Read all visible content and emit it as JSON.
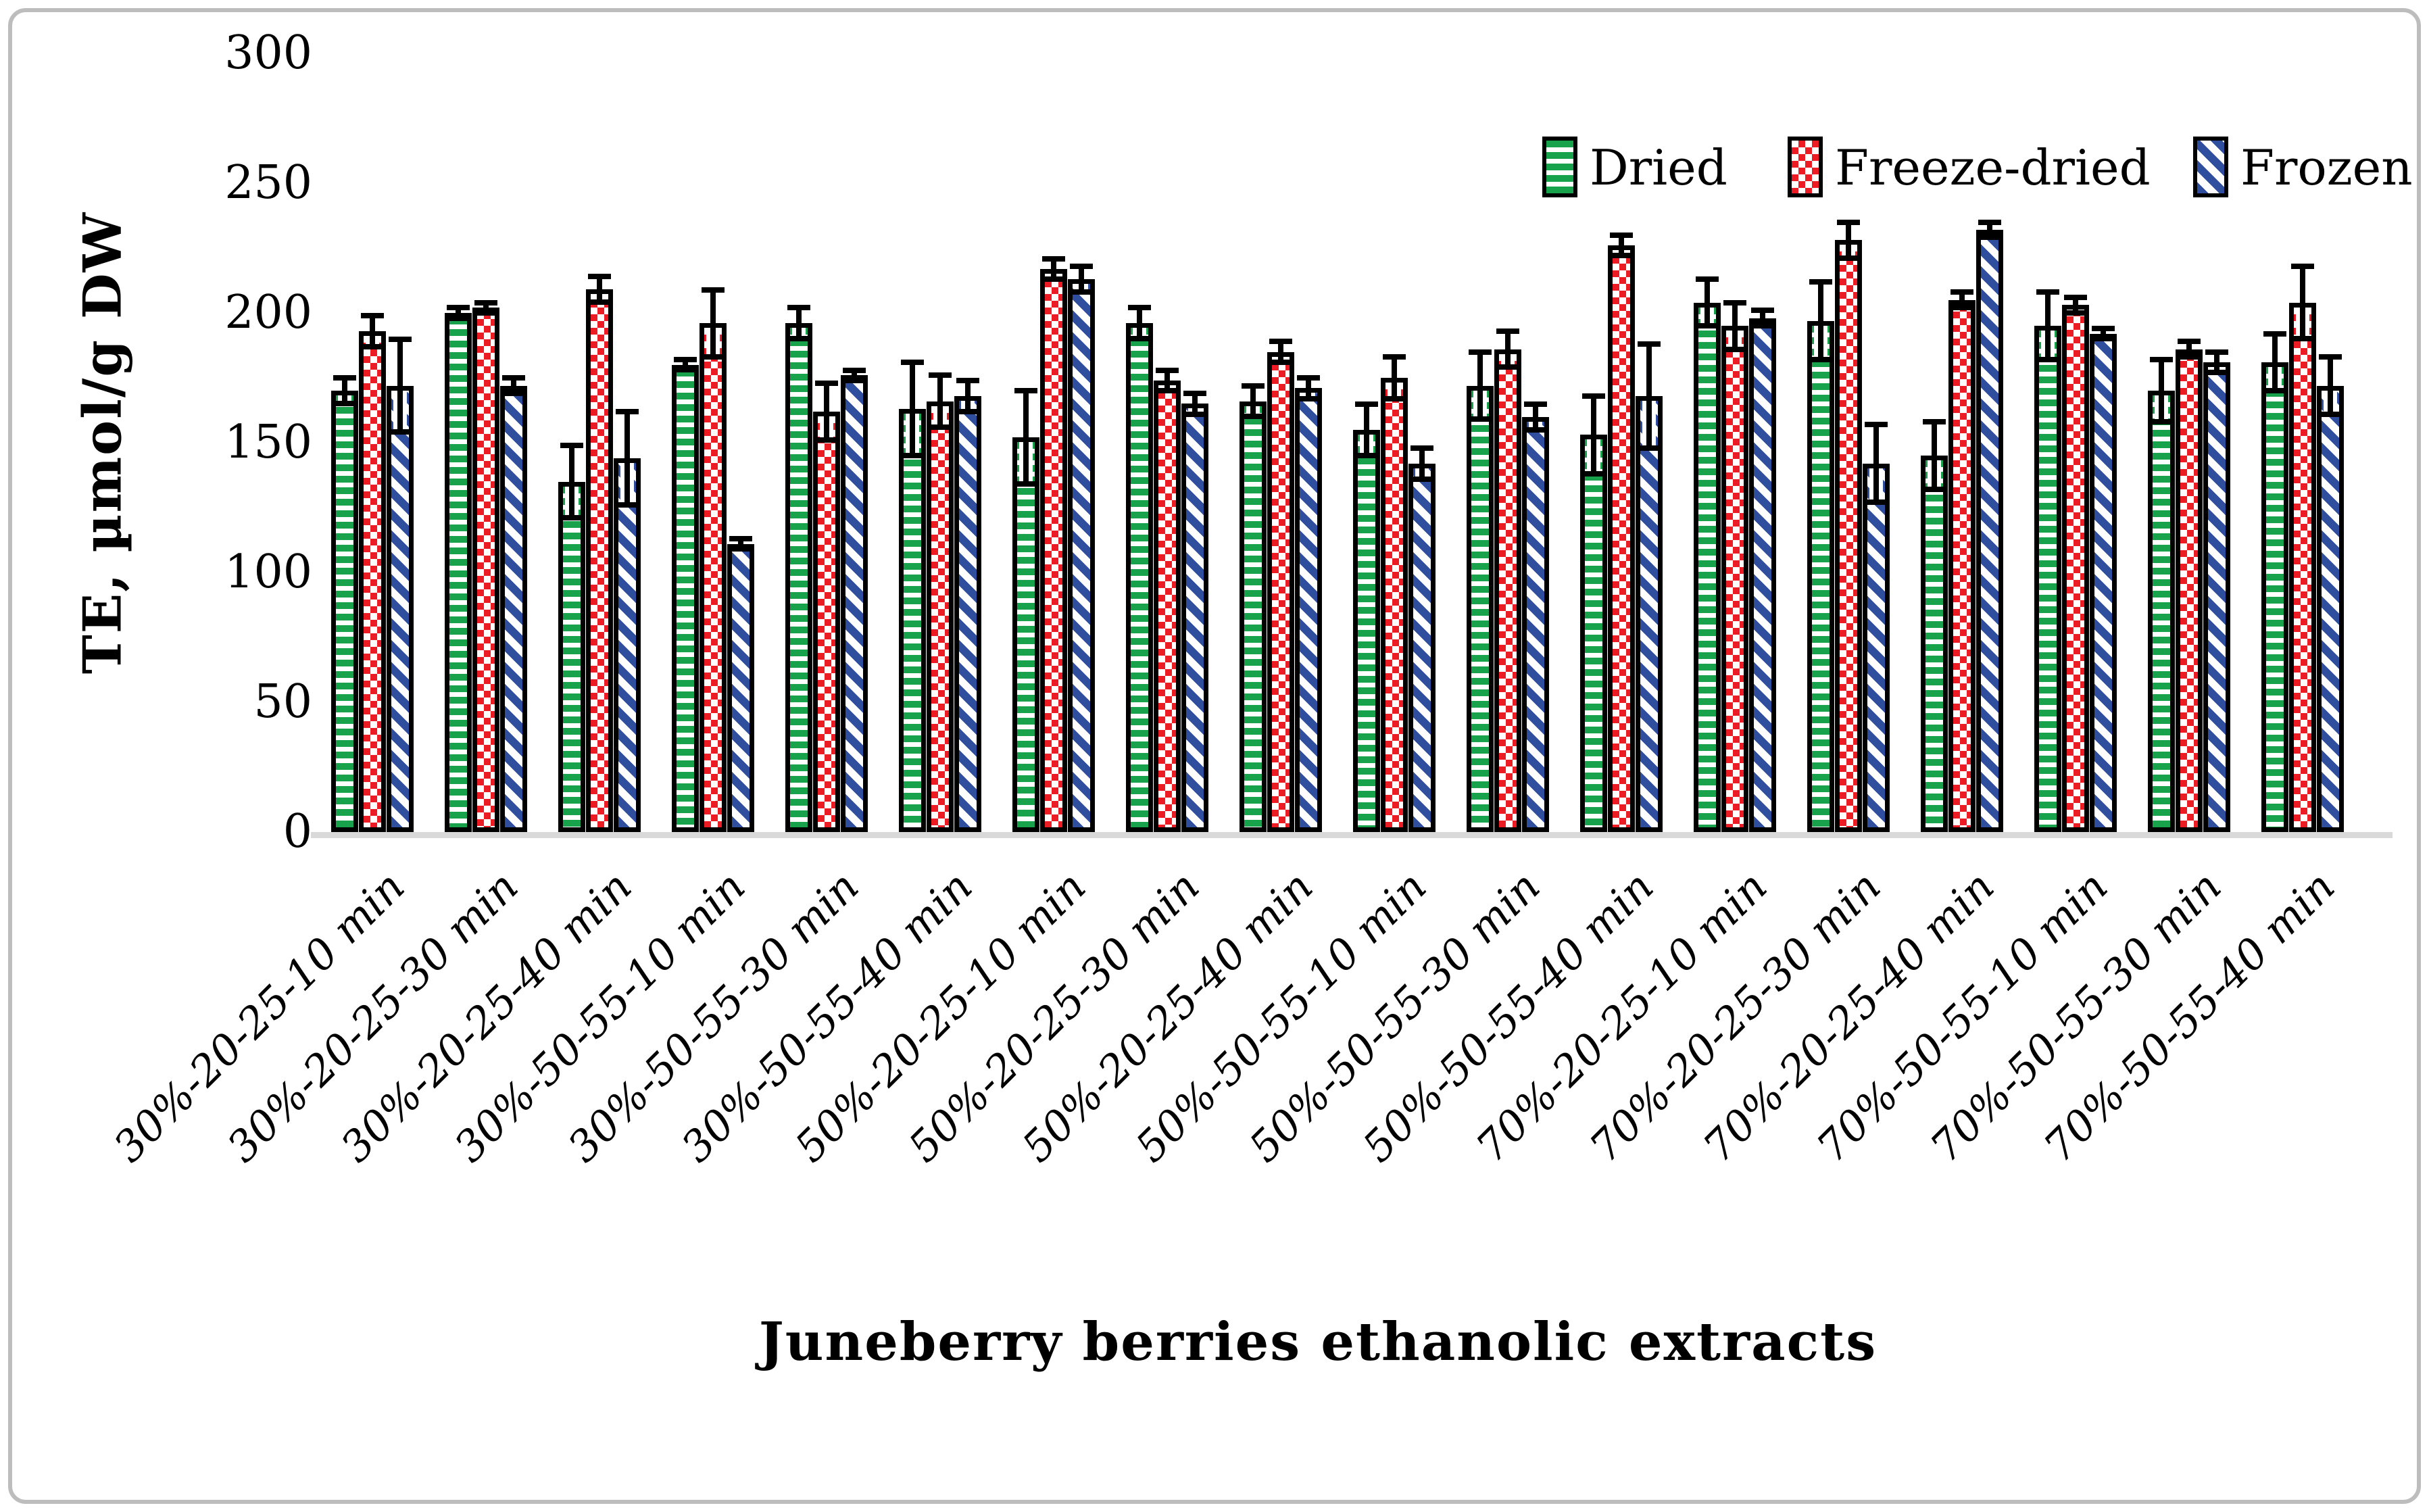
{
  "figure": {
    "background": "#ffffff",
    "border_color": "#bdbdbd"
  },
  "chart_data": {
    "type": "bar",
    "title": "",
    "xlabel": "Juneberry berries ethanolic extracts",
    "ylabel": "TE, µmol/g DW",
    "ylim": [
      0,
      300
    ],
    "yticks": [
      0,
      50,
      100,
      150,
      200,
      250,
      300
    ],
    "grid": false,
    "legend_position": "top-right",
    "error_bars": true,
    "bar_outline_color": "#000000",
    "categories": [
      "30%-20-25-10 min",
      "30%-20-25-30 min",
      "30%-20-25-40 min",
      "30%-50-55-10 min",
      "30%-50-55-30 min",
      "30%-50-55-40 min",
      "50%-20-25-10 min",
      "50%-20-25-30 min",
      "50%-20-25-40 min",
      "50%-50-55-10 min",
      "50%-50-55-30 min",
      "50%-50-55-40 min",
      "70%-20-25-10 min",
      "70%-20-25-30 min",
      "70%-20-25-40 min",
      "70%-50-55-10 min",
      "70%-50-55-30 min",
      "70%-50-55-40 min"
    ],
    "series": [
      {
        "name": "Dried",
        "color": "#18a24b",
        "pattern": "green-horizontal-stripes",
        "values": [
          170,
          200,
          135,
          180,
          196,
          163,
          152,
          196,
          166,
          155,
          172,
          153,
          204,
          197,
          145,
          195,
          170,
          181
        ],
        "errors": [
          6,
          3,
          15,
          3,
          7,
          19,
          19,
          7,
          7,
          11,
          14,
          16,
          10,
          16,
          14,
          14,
          13,
          12
        ]
      },
      {
        "name": "Freeze-dried",
        "color": "#ec1c24",
        "pattern": "red-checkerboard",
        "values": [
          193,
          202,
          209,
          196,
          162,
          166,
          217,
          174,
          185,
          175,
          186,
          226,
          195,
          228,
          205,
          203,
          186,
          204
        ],
        "errors": [
          7,
          3,
          6,
          14,
          12,
          11,
          5,
          5,
          5,
          9,
          8,
          5,
          10,
          8,
          4,
          4,
          4,
          15
        ]
      },
      {
        "name": "Frozen",
        "color": "#2f4e9e",
        "pattern": "blue-diagonal-stripes",
        "values": [
          172,
          172,
          144,
          111,
          176,
          168,
          213,
          165,
          171,
          142,
          160,
          168,
          198,
          142,
          232,
          192,
          181,
          172
        ],
        "errors": [
          19,
          4,
          19,
          3,
          3,
          7,
          6,
          5,
          5,
          7,
          6,
          21,
          4,
          16,
          4,
          3,
          5,
          12
        ]
      }
    ]
  }
}
